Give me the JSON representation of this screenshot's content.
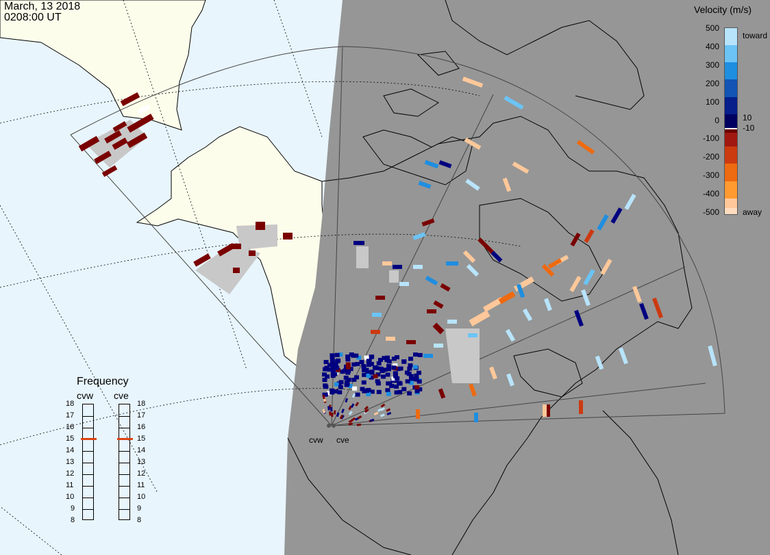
{
  "header": {
    "date": "March, 13 2018",
    "time": "0208:00 UT"
  },
  "radars": [
    {
      "name": "cvw",
      "label": "cvw"
    },
    {
      "name": "cve",
      "label": "cve"
    }
  ],
  "frequency_panel": {
    "title": "Frequency",
    "scale": [
      "18",
      "17",
      "16",
      "15",
      "14",
      "13",
      "12",
      "11",
      "10",
      "9",
      "8"
    ],
    "cvw_value": 15,
    "cve_value": 15,
    "marker_color": "#dd4411"
  },
  "legend": {
    "title": "Velocity (m/s)",
    "toward_label": "toward",
    "away_label": "away",
    "ticks": [
      "500",
      "400",
      "300",
      "200",
      "100",
      "10",
      "0",
      "-10",
      "-100",
      "-200",
      "-300",
      "-400",
      "-500"
    ],
    "colors": [
      "#b8e4fb",
      "#6bc4f5",
      "#1e8ee0",
      "#1355b4",
      "#061f8a",
      "#000060",
      "#ffffff",
      "#6b0000",
      "#a01810",
      "#cc3a10",
      "#ee6a10",
      "#ff9a30",
      "#ffc89a",
      "#ffdcc0"
    ]
  },
  "map_colors": {
    "ocean": "#e8f5fd",
    "land": "#fdfdeb",
    "night": "#969696",
    "groundscatter": "#c8c8c8",
    "coast": "#000000"
  }
}
